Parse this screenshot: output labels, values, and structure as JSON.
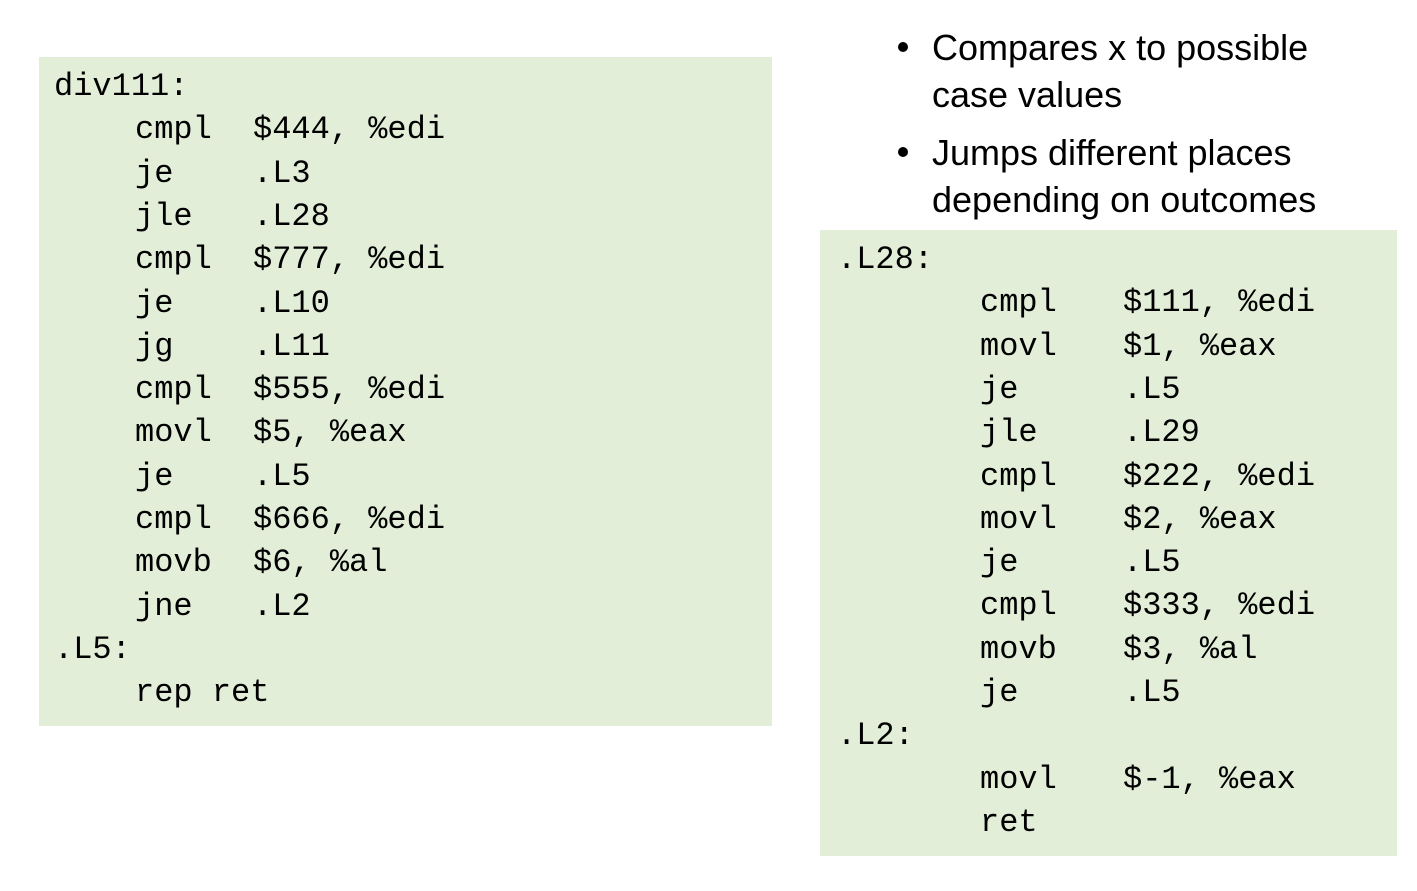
{
  "bullets": [
    [
      "Compares x to possible",
      "case values"
    ],
    [
      "Jumps different places",
      "depending on outcomes"
    ]
  ],
  "left_code": [
    {
      "label": "div111:"
    },
    {
      "op": "cmpl",
      "arg": "$444, %edi"
    },
    {
      "op": "je",
      "arg": ".L3"
    },
    {
      "op": "jle",
      "arg": ".L28"
    },
    {
      "op": "cmpl",
      "arg": "$777, %edi"
    },
    {
      "op": "je",
      "arg": ".L10"
    },
    {
      "op": "jg",
      "arg": ".L11"
    },
    {
      "op": "cmpl",
      "arg": "$555, %edi"
    },
    {
      "op": "movl",
      "arg": "$5, %eax"
    },
    {
      "op": "je",
      "arg": ".L5"
    },
    {
      "op": "cmpl",
      "arg": "$666, %edi"
    },
    {
      "op": "movb",
      "arg": "$6, %al"
    },
    {
      "op": "jne",
      "arg": ".L2"
    },
    {
      "label": ".L5:"
    },
    {
      "op": "rep ret"
    }
  ],
  "right_code": [
    {
      "label": ".L28:"
    },
    {
      "op": "cmpl",
      "arg": "$111, %edi"
    },
    {
      "op": "movl",
      "arg": "$1, %eax"
    },
    {
      "op": "je",
      "arg": ".L5"
    },
    {
      "op": "jle",
      "arg": ".L29"
    },
    {
      "op": "cmpl",
      "arg": "$222, %edi"
    },
    {
      "op": "movl",
      "arg": "$2, %eax"
    },
    {
      "op": "je",
      "arg": ".L5"
    },
    {
      "op": "cmpl",
      "arg": "$333, %edi"
    },
    {
      "op": "movb",
      "arg": "$3, %al"
    },
    {
      "op": "je",
      "arg": ".L5"
    },
    {
      "label": ".L2:"
    },
    {
      "op": "movl",
      "arg": "$-1, %eax"
    },
    {
      "op": "ret"
    }
  ]
}
